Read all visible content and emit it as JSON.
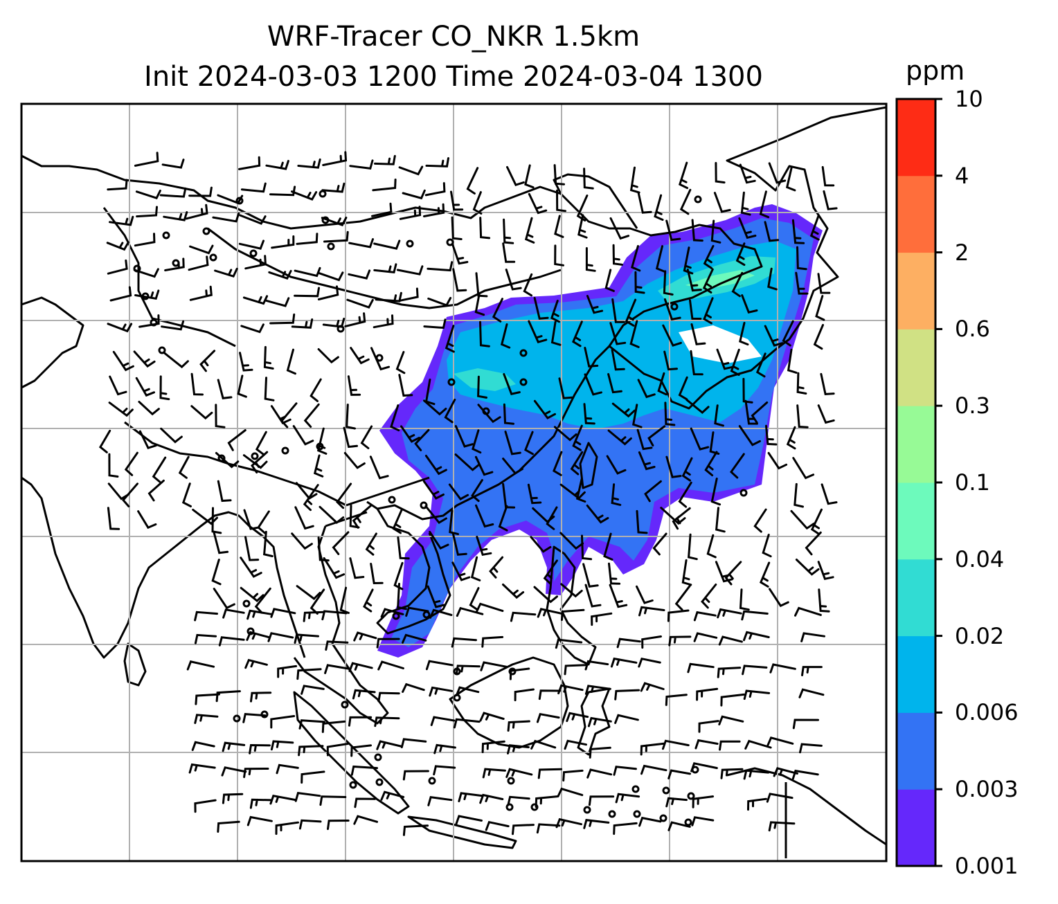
{
  "title": {
    "line1": "WRF-Tracer CO_NKR 1.5km",
    "line2": "Init 2024-03-03 1200 Time 2024-03-04 1300"
  },
  "colorbar": {
    "unit": "ppm",
    "levels": [
      "0.001",
      "0.003",
      "0.006",
      "0.02",
      "0.04",
      "0.1",
      "0.3",
      "0.6",
      "2",
      "4",
      "10"
    ],
    "colors": [
      "#6528fb",
      "#3373f4",
      "#00b4ec",
      "#31dcd3",
      "#6dfabc",
      "#97fa96",
      "#d0e184",
      "#fdaf62",
      "#ff6e3b",
      "#fe2c15"
    ]
  },
  "map": {
    "gridlines": true,
    "plume_colors": {
      "outer": "#6528fb",
      "mid": "#3373f4",
      "core": "#00b4ec",
      "high": "#31dcd3",
      "peak": "#6dfabc"
    }
  }
}
